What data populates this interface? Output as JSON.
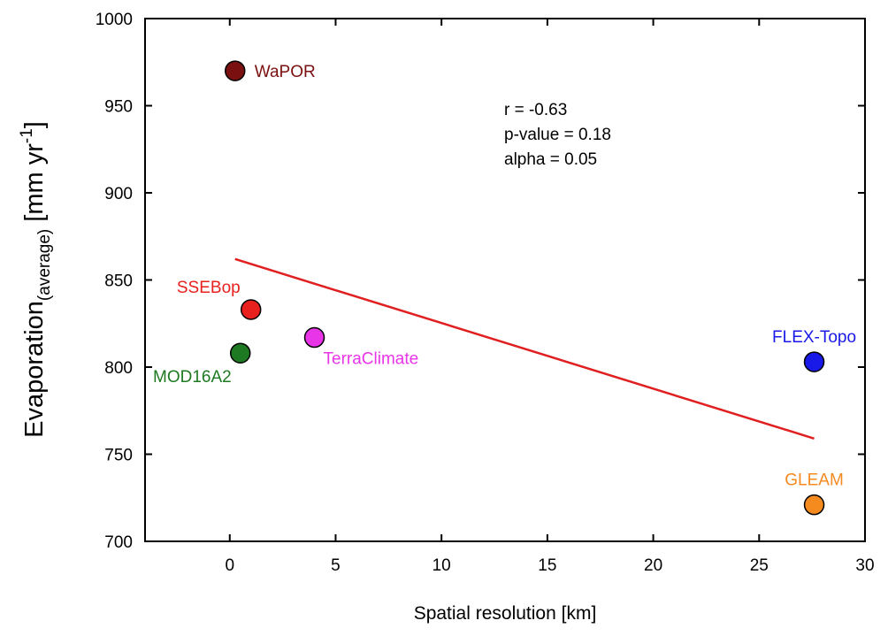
{
  "chart_data": {
    "type": "scatter",
    "title": "",
    "xlabel": "Spatial resolution [km]",
    "ylabel": {
      "main": "Evaporation",
      "subscript": "(average)",
      "units_prefix": " [mm yr",
      "units_superscript": "-1",
      "units_suffix": "]"
    },
    "xlim": [
      -4,
      30
    ],
    "ylim": [
      700,
      1000
    ],
    "xticks": [
      0,
      5,
      10,
      15,
      20,
      25,
      30
    ],
    "yticks": [
      700,
      750,
      800,
      850,
      900,
      950,
      1000
    ],
    "points": [
      {
        "name": "WaPOR",
        "x": 0.25,
        "y": 970,
        "color": "#7a1010",
        "label_pos": "right"
      },
      {
        "name": "SSEBop",
        "x": 1.0,
        "y": 833,
        "color": "#e8201e",
        "label_pos": "top-left"
      },
      {
        "name": "MOD16A2",
        "x": 0.5,
        "y": 808,
        "color": "#1e7a22",
        "label_pos": "bottom-left"
      },
      {
        "name": "TerraClimate",
        "x": 4.0,
        "y": 817,
        "color": "#e835e8",
        "label_pos": "bottom-right"
      },
      {
        "name": "FLEX-Topo",
        "x": 27.6,
        "y": 803,
        "color": "#1a1ae8",
        "label_pos": "top"
      },
      {
        "name": "GLEAM",
        "x": 27.6,
        "y": 721,
        "color": "#f58a1f",
        "label_pos": "top"
      }
    ],
    "trendline": {
      "x": [
        0.25,
        27.6
      ],
      "y": [
        862,
        759
      ],
      "color": "#e02020"
    },
    "annotations": [
      "r = -0.63",
      "p-value = 0.18",
      "alpha = 0.05"
    ]
  }
}
